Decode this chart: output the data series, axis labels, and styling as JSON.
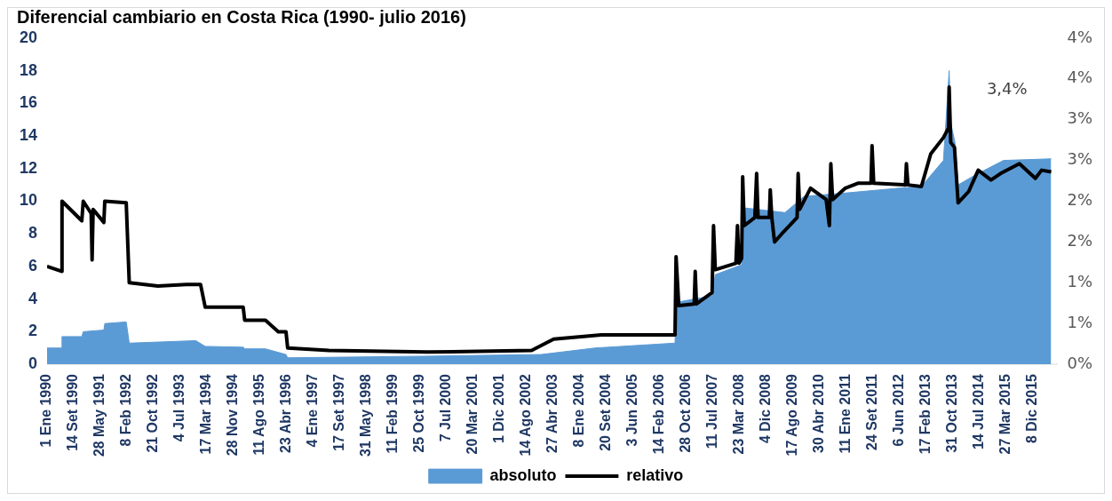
{
  "chart_data": {
    "type": "area",
    "title": "Diferencial cambiario en Costa Rica (1990- julio 2016)",
    "xlim": [
      "1990-01-01",
      "2016-07-31"
    ],
    "xticks": [
      {
        "value": "1990-01-01",
        "label": "1 Ene 1990"
      },
      {
        "value": "1990-09-14",
        "label": "14 Set 1990"
      },
      {
        "value": "1991-05-28",
        "label": "28 May 1991"
      },
      {
        "value": "1992-02-08",
        "label": "8 Feb 1992"
      },
      {
        "value": "1992-10-21",
        "label": "21 Oct 1992"
      },
      {
        "value": "1993-07-04",
        "label": "4 Jul 1993"
      },
      {
        "value": "1994-03-17",
        "label": "17 Mar 1994"
      },
      {
        "value": "1994-11-28",
        "label": "28 Nov 1994"
      },
      {
        "value": "1995-08-11",
        "label": "11 Ago 1995"
      },
      {
        "value": "1996-04-23",
        "label": "23 Abr 1996"
      },
      {
        "value": "1997-01-04",
        "label": "4 Ene 1997"
      },
      {
        "value": "1997-09-17",
        "label": "17 Set 1997"
      },
      {
        "value": "1998-05-31",
        "label": "31 May 1998"
      },
      {
        "value": "1999-02-11",
        "label": "11 Feb 1999"
      },
      {
        "value": "1999-10-25",
        "label": "25 Oct 1999"
      },
      {
        "value": "2000-07-07",
        "label": "7 Jul 2000"
      },
      {
        "value": "2001-03-20",
        "label": "20 Mar 2001"
      },
      {
        "value": "2001-12-01",
        "label": "1 Dic 2001"
      },
      {
        "value": "2002-08-14",
        "label": "14 Ago 2002"
      },
      {
        "value": "2003-04-27",
        "label": "27 Abr 2003"
      },
      {
        "value": "2004-01-08",
        "label": "8 Ene 2004"
      },
      {
        "value": "2004-09-20",
        "label": "20 Set 2004"
      },
      {
        "value": "2005-06-03",
        "label": "3 Jun 2005"
      },
      {
        "value": "2006-02-14",
        "label": "14 Feb 2006"
      },
      {
        "value": "2006-10-28",
        "label": "28 Oct 2006"
      },
      {
        "value": "2007-07-11",
        "label": "11 Jul 2007"
      },
      {
        "value": "2008-03-23",
        "label": "23 Mar 2008"
      },
      {
        "value": "2008-12-04",
        "label": "4 Dic 2008"
      },
      {
        "value": "2009-08-17",
        "label": "17 Ago 2009"
      },
      {
        "value": "2010-04-30",
        "label": "30 Abr 2010"
      },
      {
        "value": "2011-01-11",
        "label": "11 Ene 2011"
      },
      {
        "value": "2011-09-24",
        "label": "24 Set 2011"
      },
      {
        "value": "2012-06-06",
        "label": "6 Jun 2012"
      },
      {
        "value": "2013-02-17",
        "label": "17 Feb 2013"
      },
      {
        "value": "2013-10-31",
        "label": "31 Oct 2013"
      },
      {
        "value": "2014-07-14",
        "label": "14 Jul 2014"
      },
      {
        "value": "2015-03-27",
        "label": "27 Mar 2015"
      },
      {
        "value": "2015-12-08",
        "label": "8 Dic 2015"
      }
    ],
    "ylim": [
      0,
      20
    ],
    "yticks": [
      0,
      2,
      4,
      6,
      8,
      10,
      12,
      14,
      16,
      18,
      20
    ],
    "y2lim": [
      0,
      4
    ],
    "y2ticks": [
      {
        "value": 0,
        "label": "0%"
      },
      {
        "value": 0.5,
        "label": "1%"
      },
      {
        "value": 1,
        "label": "1%"
      },
      {
        "value": 1.5,
        "label": "2%"
      },
      {
        "value": 2,
        "label": "2%"
      },
      {
        "value": 2.5,
        "label": "3%"
      },
      {
        "value": 3,
        "label": "3%"
      },
      {
        "value": 3.5,
        "label": "4%"
      },
      {
        "value": 4,
        "label": "4%"
      }
    ],
    "grid": false,
    "legend": "bottom",
    "annotations": [
      "3,4%"
    ],
    "series": [
      {
        "name": "absoluto",
        "color": "#5b9bd5",
        "x": [
          "1990-01-01",
          "1990-05-20",
          "1990-05-25",
          "1990-12-01",
          "1990-12-15",
          "1991-07-01",
          "1991-07-10",
          "1992-02-01",
          "1992-03-01",
          "1993-12-01",
          "1994-03-01",
          "1995-03-01",
          "1995-03-15",
          "1995-10-01",
          "1996-04-15",
          "1996-05-01",
          "2000-01-01",
          "2003-01-01",
          "2004-06-01",
          "2006-07-10",
          "2006-07-20",
          "2007-07-01",
          "2007-08-01",
          "2008-04-10",
          "2008-04-20",
          "2009-06-01",
          "2009-12-01",
          "2011-01-01",
          "2012-06-01",
          "2013-01-01",
          "2013-08-01",
          "2013-09-25",
          "2013-10-10",
          "2013-11-20",
          "2013-12-20",
          "2014-06-01",
          "2015-03-01",
          "2016-06-01"
        ],
        "values": [
          1.0,
          1.0,
          1.7,
          1.7,
          2.0,
          2.1,
          2.5,
          2.6,
          1.3,
          1.45,
          1.1,
          1.05,
          0.95,
          0.95,
          0.6,
          0.4,
          0.5,
          0.6,
          1.0,
          1.3,
          3.8,
          4.2,
          5.5,
          6.1,
          9.6,
          9.3,
          10.3,
          10.5,
          10.8,
          10.9,
          12.5,
          18.0,
          14.8,
          13.6,
          11.0,
          11.6,
          12.5,
          12.6
        ]
      },
      {
        "name": "relativo",
        "type": "line",
        "axis": "y2",
        "color": "#000000",
        "x": [
          "1990-01-01",
          "1990-05-20",
          "1990-05-25",
          "1990-12-01",
          "1990-12-15",
          "1991-03-01",
          "1991-03-10",
          "1991-03-20",
          "1991-07-01",
          "1991-07-10",
          "1992-02-01",
          "1992-03-01",
          "1992-12-01",
          "1993-09-01",
          "1994-01-15",
          "1994-03-01",
          "1995-03-01",
          "1995-03-15",
          "1995-10-01",
          "1996-02-01",
          "1996-04-15",
          "1996-05-01",
          "1997-06-01",
          "2000-01-01",
          "2002-10-01",
          "2003-05-01",
          "2004-08-01",
          "2006-07-10",
          "2006-07-20",
          "2006-08-15",
          "2007-01-10",
          "2007-01-20",
          "2007-02-01",
          "2007-07-01",
          "2007-07-15",
          "2007-08-01",
          "2008-02-15",
          "2008-03-01",
          "2008-03-15",
          "2008-04-10",
          "2008-04-20",
          "2008-05-05",
          "2008-08-15",
          "2008-09-01",
          "2008-09-15",
          "2009-01-01",
          "2009-01-10",
          "2009-01-25",
          "2009-02-20",
          "2009-05-01",
          "2009-09-25",
          "2009-10-05",
          "2009-10-20",
          "2010-02-01",
          "2010-07-01",
          "2010-08-01",
          "2010-08-15",
          "2010-09-01",
          "2011-01-01",
          "2011-05-01",
          "2011-09-05",
          "2011-09-15",
          "2011-10-01",
          "2012-08-01",
          "2012-08-10",
          "2012-08-25",
          "2013-01-01",
          "2013-04-01",
          "2013-08-01",
          "2013-09-20",
          "2013-09-25",
          "2013-10-10",
          "2013-11-15",
          "2013-12-20",
          "2014-04-01",
          "2014-07-01",
          "2014-11-01",
          "2015-02-01",
          "2015-08-01",
          "2016-01-01",
          "2016-03-01",
          "2016-06-01"
        ],
        "values": [
          1.2,
          1.14,
          2.0,
          1.76,
          2.0,
          1.85,
          1.28,
          1.9,
          1.74,
          2.0,
          1.98,
          1.0,
          0.96,
          0.98,
          0.98,
          0.7,
          0.7,
          0.54,
          0.54,
          0.4,
          0.4,
          0.2,
          0.17,
          0.15,
          0.17,
          0.31,
          0.36,
          0.36,
          1.32,
          0.72,
          0.74,
          1.14,
          0.74,
          0.88,
          1.7,
          1.16,
          1.24,
          1.7,
          1.24,
          1.3,
          2.3,
          1.7,
          1.8,
          2.34,
          1.8,
          1.8,
          2.14,
          1.8,
          1.5,
          1.6,
          1.8,
          2.34,
          1.9,
          2.16,
          2.02,
          1.7,
          2.46,
          2.02,
          2.16,
          2.22,
          2.22,
          2.68,
          2.22,
          2.2,
          2.46,
          2.2,
          2.18,
          2.58,
          2.78,
          2.9,
          3.4,
          2.72,
          2.66,
          1.98,
          2.12,
          2.38,
          2.26,
          2.34,
          2.46,
          2.28,
          2.38,
          2.36
        ]
      }
    ]
  }
}
